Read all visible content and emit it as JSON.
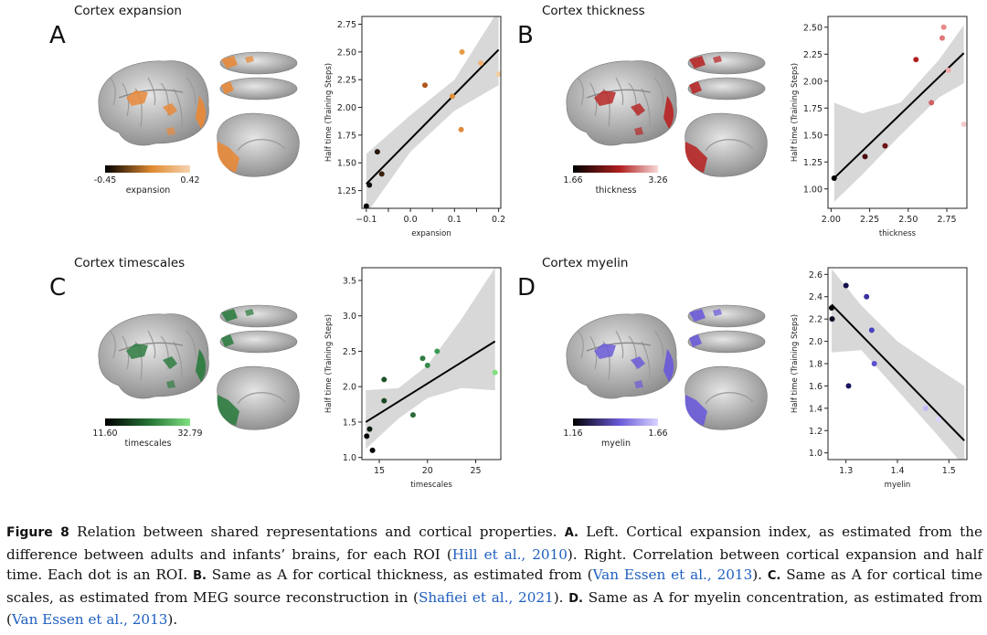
{
  "figure": {
    "panels": [
      {
        "id": "A",
        "letter": "A",
        "title": "Cortex expansion",
        "colorbar": {
          "min": "-0.45",
          "max": "0.42",
          "label": "expansion",
          "c0": "#000000",
          "c1": "#f6d3b0",
          "mid": "#e08a30"
        },
        "brain_color": "#e8893a"
      },
      {
        "id": "B",
        "letter": "B",
        "title": "Cortex thickness",
        "colorbar": {
          "min": "1.66",
          "max": "3.26",
          "label": "thickness",
          "c0": "#000000",
          "c1": "#f8d8d8",
          "mid": "#b02020"
        },
        "brain_color": "#b82828"
      },
      {
        "id": "C",
        "letter": "C",
        "title": "Cortex timescales",
        "colorbar": {
          "min": "11.60",
          "max": "32.79",
          "label": "timescales",
          "c0": "#000000",
          "c1": "#80e080",
          "mid": "#2a7a3a"
        },
        "brain_color": "#2f7d42"
      },
      {
        "id": "D",
        "letter": "D",
        "title": "Cortex myelin",
        "colorbar": {
          "min": "1.16",
          "max": "1.66",
          "label": "myelin",
          "c0": "#000000",
          "c1": "#d8d4ff",
          "mid": "#6a5ad8"
        },
        "brain_color": "#6b5cd8"
      }
    ],
    "caption": {
      "label": "Figure 8",
      "parts": [
        {
          "t": "  Relation between shared representations and cortical properties. ",
          "s": ""
        },
        {
          "t": "A.",
          "s": "bl"
        },
        {
          "t": " Left. Cortical expansion index, as estimated from the difference between adults and infants’ brains, for each ROI (",
          "s": ""
        },
        {
          "t": "Hill et al., 2010",
          "s": "cite"
        },
        {
          "t": "). Right. Correlation between cortical expansion and half time. Each dot is an ROI. ",
          "s": ""
        },
        {
          "t": "B.",
          "s": "bl"
        },
        {
          "t": " Same as A for cortical thickness, as estimated from (",
          "s": ""
        },
        {
          "t": "Van Essen et al., 2013",
          "s": "cite"
        },
        {
          "t": "). ",
          "s": ""
        },
        {
          "t": "C.",
          "s": "bl"
        },
        {
          "t": " Same as A for cortical time scales, as estimated from MEG source reconstruction in (",
          "s": ""
        },
        {
          "t": "Shafiei et al., 2021",
          "s": "cite"
        },
        {
          "t": "). ",
          "s": ""
        },
        {
          "t": "D.",
          "s": "bl"
        },
        {
          "t": " Same as A for myelin concentration, as estimated from (",
          "s": ""
        },
        {
          "t": "Van Essen et al., 2013",
          "s": "cite"
        },
        {
          "t": ").",
          "s": ""
        }
      ]
    }
  },
  "chart_data": [
    {
      "id": "A",
      "type": "scatter",
      "xlabel": "expansion",
      "ylabel": "Half time (Training Steps)",
      "xlim": [
        -0.11,
        0.205
      ],
      "ylim": [
        1.09,
        2.82
      ],
      "xticks": [
        -0.1,
        -0.05,
        0.0,
        0.05,
        0.1,
        0.15,
        0.2
      ],
      "xticklabels": [
        "−0.1",
        "",
        "0.0",
        "",
        "0.1",
        "",
        "0.2"
      ],
      "yticks": [
        1.25,
        1.5,
        1.75,
        2.0,
        2.25,
        2.5,
        2.75
      ],
      "yticklabels": [
        "1.25",
        "1.50",
        "1.75",
        "2.00",
        "2.25",
        "2.50",
        "2.75"
      ],
      "points": [
        {
          "x": -0.1,
          "y": 1.11,
          "c": "#000000"
        },
        {
          "x": -0.093,
          "y": 1.3,
          "c": "#111111"
        },
        {
          "x": -0.075,
          "y": 1.6,
          "c": "#2a1608"
        },
        {
          "x": -0.065,
          "y": 1.4,
          "c": "#3a1f0a"
        },
        {
          "x": 0.033,
          "y": 2.2,
          "c": "#b0581c"
        },
        {
          "x": 0.095,
          "y": 2.1,
          "c": "#e0903a"
        },
        {
          "x": 0.117,
          "y": 2.5,
          "c": "#e89a48"
        },
        {
          "x": 0.115,
          "y": 1.8,
          "c": "#e08a3a"
        },
        {
          "x": 0.16,
          "y": 2.4,
          "c": "#f0b070"
        },
        {
          "x": 0.2,
          "y": 2.3,
          "c": "#f6d0a0"
        }
      ],
      "fit": {
        "x": [
          -0.1,
          0.2
        ],
        "y": [
          1.31,
          2.52
        ]
      },
      "band": {
        "x": [
          -0.1,
          0.0,
          0.1,
          0.2
        ],
        "lo": [
          1.04,
          1.6,
          1.97,
          2.2
        ],
        "hi": [
          1.58,
          1.93,
          2.25,
          2.88
        ]
      }
    },
    {
      "id": "B",
      "type": "scatter",
      "xlabel": "thickness",
      "ylabel": "Half time (Training Steps)",
      "xlim": [
        1.98,
        2.88
      ],
      "ylim": [
        0.82,
        2.6
      ],
      "xticks": [
        2.0,
        2.25,
        2.5,
        2.75
      ],
      "xticklabels": [
        "2.00",
        "2.25",
        "2.50",
        "2.75"
      ],
      "yticks": [
        1.0,
        1.25,
        1.5,
        1.75,
        2.0,
        2.25,
        2.5
      ],
      "yticklabels": [
        "1.00",
        "1.25",
        "1.50",
        "1.75",
        "2.00",
        "2.25",
        "2.50"
      ],
      "points": [
        {
          "x": 2.02,
          "y": 1.1,
          "c": "#000000"
        },
        {
          "x": 2.22,
          "y": 1.3,
          "c": "#4a0c0c"
        },
        {
          "x": 2.35,
          "y": 1.4,
          "c": "#6a1414"
        },
        {
          "x": 2.55,
          "y": 2.2,
          "c": "#b02020"
        },
        {
          "x": 2.65,
          "y": 1.8,
          "c": "#d06060"
        },
        {
          "x": 2.72,
          "y": 2.4,
          "c": "#e07878"
        },
        {
          "x": 2.73,
          "y": 2.5,
          "c": "#e88a8a"
        },
        {
          "x": 2.76,
          "y": 2.1,
          "c": "#f0a8a8"
        },
        {
          "x": 2.86,
          "y": 1.6,
          "c": "#f6cccc"
        }
      ],
      "fit": {
        "x": [
          2.02,
          2.86
        ],
        "y": [
          1.1,
          2.26
        ]
      },
      "band": {
        "x": [
          2.02,
          2.2,
          2.45,
          2.7,
          2.86
        ],
        "lo": [
          0.88,
          1.13,
          1.5,
          1.85,
          1.98
        ],
        "hi": [
          1.8,
          1.7,
          1.8,
          2.2,
          2.52
        ]
      }
    },
    {
      "id": "C",
      "type": "scatter",
      "xlabel": "timescales",
      "ylabel": "Half time (Training Steps)",
      "xlim": [
        13.2,
        27.6
      ],
      "ylim": [
        0.97,
        3.68
      ],
      "xticks": [
        15,
        20,
        25
      ],
      "xticklabels": [
        "15",
        "20",
        "25"
      ],
      "yticks": [
        1.0,
        1.5,
        2.0,
        2.5,
        3.0,
        3.5
      ],
      "yticklabels": [
        "1.0",
        "1.5",
        "2.0",
        "2.5",
        "3.0",
        "3.5"
      ],
      "points": [
        {
          "x": 13.7,
          "y": 1.3,
          "c": "#000000"
        },
        {
          "x": 14.0,
          "y": 1.4,
          "c": "#0a1a0c"
        },
        {
          "x": 14.3,
          "y": 1.1,
          "c": "#000000"
        },
        {
          "x": 15.5,
          "y": 1.8,
          "c": "#1a4a22"
        },
        {
          "x": 15.5,
          "y": 2.1,
          "c": "#1e5228"
        },
        {
          "x": 18.5,
          "y": 1.6,
          "c": "#2a6a36"
        },
        {
          "x": 19.5,
          "y": 2.4,
          "c": "#2f7d42"
        },
        {
          "x": 20.0,
          "y": 2.3,
          "c": "#348a48"
        },
        {
          "x": 21.0,
          "y": 2.5,
          "c": "#3c9a52"
        },
        {
          "x": 27.0,
          "y": 2.2,
          "c": "#80e080"
        }
      ],
      "fit": {
        "x": [
          13.6,
          27.0
        ],
        "y": [
          1.5,
          2.64
        ]
      },
      "band": {
        "x": [
          13.6,
          17,
          20,
          23.5,
          27
        ],
        "lo": [
          1.12,
          1.55,
          1.84,
          1.98,
          1.95
        ],
        "hi": [
          1.95,
          1.98,
          2.3,
          2.95,
          3.68
        ]
      }
    },
    {
      "id": "D",
      "type": "scatter",
      "xlabel": "myelin",
      "ylabel": "Half time (Training Steps)",
      "xlim": [
        1.265,
        1.535
      ],
      "ylim": [
        0.94,
        2.66
      ],
      "xticks": [
        1.3,
        1.4,
        1.5
      ],
      "xticklabels": [
        "1.3",
        "1.4",
        "1.5"
      ],
      "yticks": [
        1.0,
        1.2,
        1.4,
        1.6,
        1.8,
        2.0,
        2.2,
        2.4,
        2.6
      ],
      "yticklabels": [
        "1.0",
        "1.2",
        "1.4",
        "1.6",
        "1.8",
        "2.0",
        "2.2",
        "2.4",
        "2.6"
      ],
      "points": [
        {
          "x": 1.272,
          "y": 2.3,
          "c": "#000000"
        },
        {
          "x": 1.273,
          "y": 2.2,
          "c": "#0a0820"
        },
        {
          "x": 1.3,
          "y": 2.5,
          "c": "#14104a"
        },
        {
          "x": 1.305,
          "y": 1.6,
          "c": "#1a1660"
        },
        {
          "x": 1.34,
          "y": 2.4,
          "c": "#3a30a0"
        },
        {
          "x": 1.35,
          "y": 2.1,
          "c": "#4a40c0"
        },
        {
          "x": 1.355,
          "y": 1.8,
          "c": "#5a50d0"
        },
        {
          "x": 1.455,
          "y": 1.4,
          "c": "#c0baf8"
        },
        {
          "x": 1.48,
          "y": 1.3,
          "c": "#d8d4ff"
        }
      ],
      "fit": {
        "x": [
          1.272,
          1.53
        ],
        "y": [
          2.33,
          1.11
        ]
      },
      "band": {
        "x": [
          1.272,
          1.33,
          1.4,
          1.47,
          1.53
        ],
        "lo": [
          1.9,
          1.92,
          1.56,
          1.2,
          0.88
        ],
        "hi": [
          2.65,
          2.32,
          2.0,
          1.78,
          1.6
        ]
      }
    }
  ]
}
